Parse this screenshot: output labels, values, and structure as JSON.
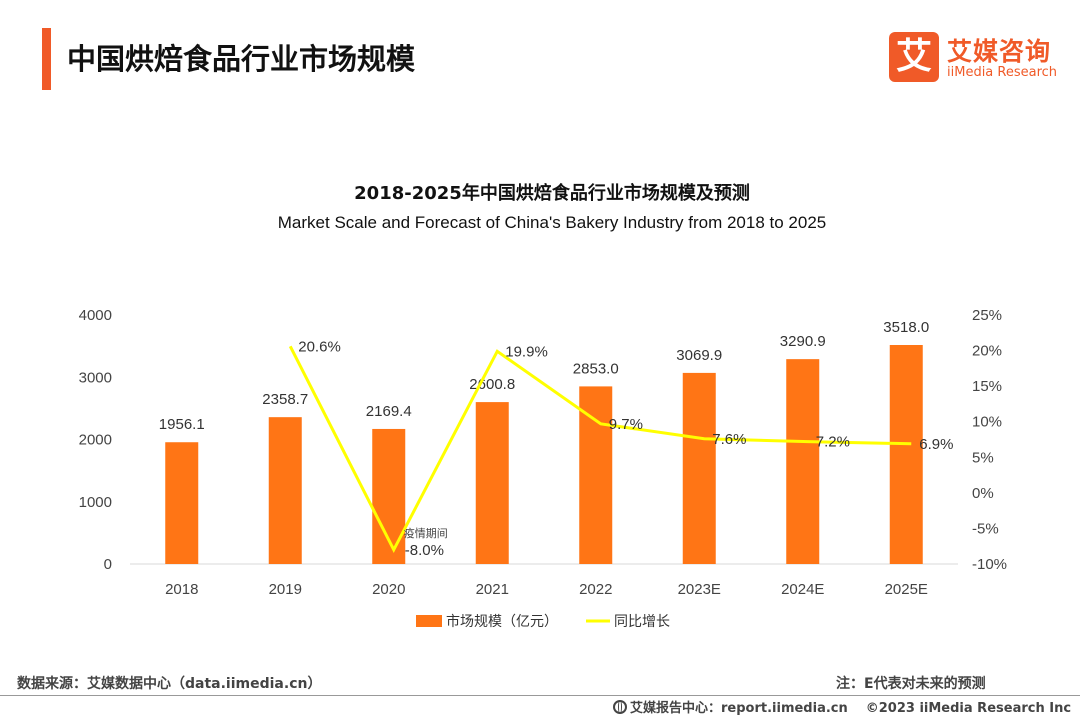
{
  "header": {
    "title": "中国烘焙食品行业市场规模",
    "logo_mark": "艾",
    "logo_cn": "艾媒咨询",
    "logo_en": "iiMedia Research"
  },
  "colors": {
    "accent": "#f05a28",
    "bar": "#ff7515",
    "line": "#ffff00"
  },
  "chart_data": {
    "type": "bar",
    "title": "2018-2025年中国烘焙食品行业市场规模及预测",
    "subtitle": "Market Scale and Forecast of China's Bakery Industry from 2018 to 2025",
    "categories": [
      "2018",
      "2019",
      "2020",
      "2021",
      "2022",
      "2023E",
      "2024E",
      "2025E"
    ],
    "series": [
      {
        "name": "市场规模（亿元）",
        "type": "bar",
        "axis": "left",
        "values": [
          1956.1,
          2358.7,
          2169.4,
          2600.8,
          2853.0,
          3069.9,
          3290.9,
          3518.0
        ],
        "labels": [
          "1956.1",
          "2358.7",
          "2169.4",
          "2600.8",
          "2853.0",
          "3069.9",
          "3290.9",
          "3518.0"
        ]
      },
      {
        "name": "同比增长",
        "type": "line",
        "axis": "right",
        "values": [
          null,
          20.6,
          -8.0,
          19.9,
          9.7,
          7.6,
          7.2,
          6.9
        ],
        "labels": [
          "",
          "20.6%",
          "-8.0%",
          "19.9%",
          "9.7%",
          "7.6%",
          "7.2%",
          "6.9%"
        ]
      }
    ],
    "y_left": {
      "ylim": [
        0,
        4000
      ],
      "ticks": [
        "0",
        "1000",
        "2000",
        "3000",
        "4000"
      ],
      "tick_values": [
        0,
        1000,
        2000,
        3000,
        4000
      ]
    },
    "y_right": {
      "ylim": [
        -10,
        25
      ],
      "ticks": [
        "-10%",
        "-5%",
        "0%",
        "5%",
        "10%",
        "15%",
        "20%",
        "25%"
      ],
      "tick_values": [
        -10,
        -5,
        0,
        5,
        10,
        15,
        20,
        25
      ]
    },
    "annotations": [
      {
        "category": "2020",
        "text": "疫情期间"
      }
    ],
    "grid": false,
    "legend_position": "bottom-center"
  },
  "footer": {
    "source": "数据来源：艾媒数据中心（data.iimedia.cn）",
    "note": "注：E代表对未来的预测",
    "report_center": "艾媒报告中心：report.iimedia.cn",
    "copyright": "©2023 iiMedia Research Inc"
  }
}
